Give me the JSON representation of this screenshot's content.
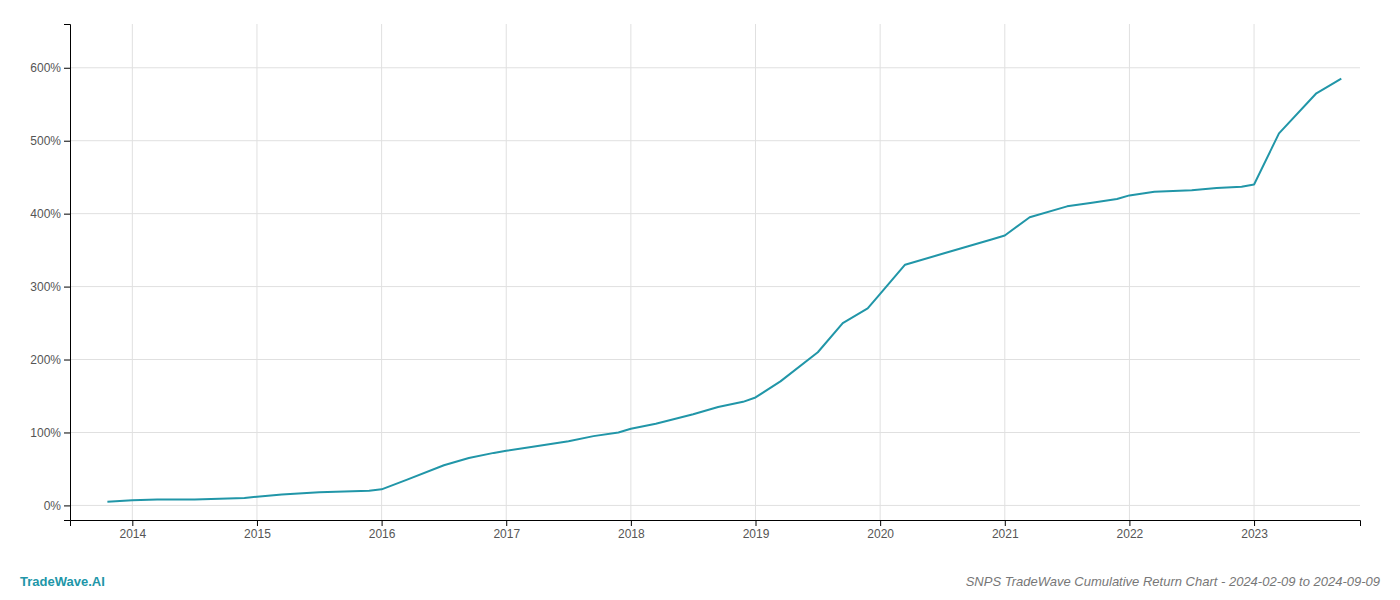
{
  "chart_data": {
    "type": "line",
    "title": "SNPS TradeWave Cumulative Return Chart - 2024-02-09 to 2024-09-09",
    "annotations": [
      {
        "text": "TradeWave.AI",
        "color": "#2196a8"
      }
    ],
    "color": "#2196a8",
    "grid": true,
    "x": [
      2013.8,
      2014.0,
      2014.2,
      2014.5,
      2014.7,
      2014.9,
      2015.0,
      2015.2,
      2015.5,
      2015.7,
      2015.9,
      2016.0,
      2016.2,
      2016.5,
      2016.7,
      2016.9,
      2017.0,
      2017.2,
      2017.5,
      2017.7,
      2017.9,
      2018.0,
      2018.2,
      2018.5,
      2018.7,
      2018.9,
      2019.0,
      2019.2,
      2019.5,
      2019.7,
      2019.9,
      2020.0,
      2020.2,
      2020.5,
      2020.7,
      2020.9,
      2021.0,
      2021.2,
      2021.5,
      2021.7,
      2021.9,
      2022.0,
      2022.2,
      2022.5,
      2022.7,
      2022.9,
      2023.0,
      2023.2,
      2023.5,
      2023.7
    ],
    "values": [
      5,
      7,
      8,
      8,
      9,
      10,
      12,
      15,
      18,
      19,
      20,
      22,
      35,
      55,
      65,
      72,
      75,
      80,
      88,
      95,
      100,
      105,
      112,
      125,
      135,
      142,
      148,
      170,
      210,
      250,
      270,
      290,
      330,
      345,
      355,
      365,
      370,
      395,
      410,
      415,
      420,
      425,
      430,
      432,
      435,
      437,
      440,
      510,
      565,
      585
    ],
    "xlim": [
      2013.5,
      2023.85
    ],
    "xticks": [
      2014,
      2015,
      2016,
      2017,
      2018,
      2019,
      2020,
      2021,
      2022,
      2023
    ],
    "ylim": [
      -20,
      660
    ],
    "yticks": [
      {
        "value": 0,
        "label": "0%"
      },
      {
        "value": 100,
        "label": "100%"
      },
      {
        "value": 200,
        "label": "200%"
      },
      {
        "value": 300,
        "label": "300%"
      },
      {
        "value": 400,
        "label": "400%"
      },
      {
        "value": 500,
        "label": "500%"
      },
      {
        "value": 600,
        "label": "600%"
      }
    ]
  }
}
